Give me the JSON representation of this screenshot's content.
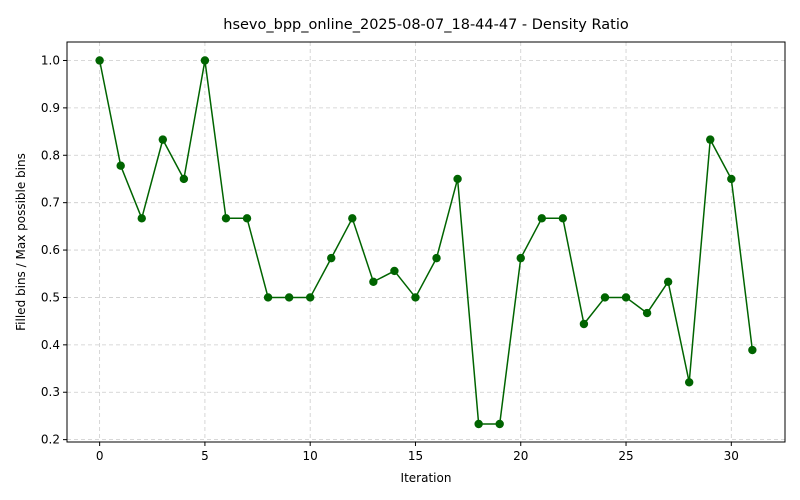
{
  "chart_data": {
    "type": "line",
    "title": "hsevo_bpp_online_2025-08-07_18-44-47 - Density Ratio",
    "xlabel": "Iteration",
    "ylabel": "Filled bins / Max possible bins",
    "xlim": [
      -1.55,
      32.55
    ],
    "ylim": [
      0.195,
      1.039
    ],
    "xticks": [
      0,
      5,
      10,
      15,
      20,
      25,
      30
    ],
    "xtick_labels": [
      "0",
      "5",
      "10",
      "15",
      "20",
      "25",
      "30"
    ],
    "yticks": [
      0.2,
      0.3,
      0.4,
      0.5,
      0.6,
      0.7,
      0.8,
      0.9,
      1.0
    ],
    "ytick_labels": [
      "0.2",
      "0.3",
      "0.4",
      "0.5",
      "0.6",
      "0.7",
      "0.8",
      "0.9",
      "1.0"
    ],
    "grid": true,
    "legend": "none",
    "series": [
      {
        "color": "#006400",
        "marker": "circle",
        "x": [
          0,
          1,
          2,
          3,
          4,
          5,
          6,
          7,
          8,
          9,
          10,
          11,
          12,
          13,
          14,
          15,
          16,
          17,
          18,
          19,
          20,
          21,
          22,
          23,
          24,
          25,
          26,
          27,
          28,
          29,
          30,
          31
        ],
        "values": [
          1.0,
          0.778,
          0.667,
          0.833,
          0.75,
          1.0,
          0.667,
          0.667,
          0.5,
          0.5,
          0.5,
          0.583,
          0.667,
          0.533,
          0.556,
          0.5,
          0.583,
          0.75,
          0.233,
          0.233,
          0.583,
          0.667,
          0.667,
          0.444,
          0.5,
          0.5,
          0.467,
          0.533,
          0.321,
          0.833,
          0.75,
          0.389
        ]
      }
    ]
  }
}
